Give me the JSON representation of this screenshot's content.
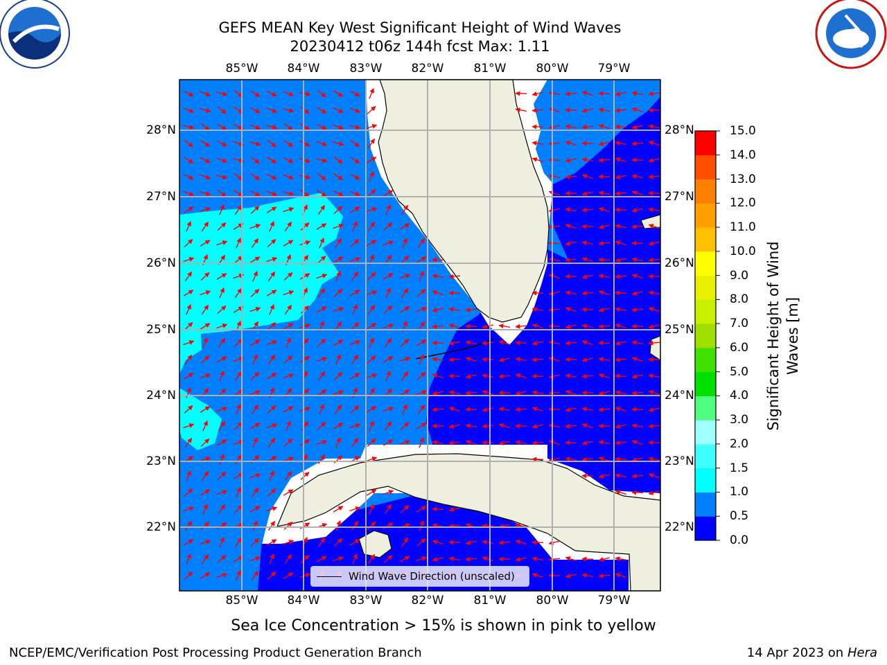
{
  "title": {
    "line1": "GEFS MEAN Key West Significant Height of Wind Waves",
    "line2": "20230412 t06z 144h fcst   Max: 1.11"
  },
  "longitude_labels": [
    "85°W",
    "84°W",
    "83°W",
    "82°W",
    "81°W",
    "80°W",
    "79°W"
  ],
  "latitude_labels": [
    "28°N",
    "27°N",
    "26°N",
    "25°N",
    "24°N",
    "23°N",
    "22°N"
  ],
  "legend": {
    "label": "Wind Wave Direction (unscaled)"
  },
  "colorbar": {
    "label_line1": "Significant Height of Wind",
    "label_line2": "Waves [m]",
    "ticks": [
      "15.0",
      "14.0",
      "13.0",
      "12.0",
      "11.0",
      "10.0",
      "9.0",
      "8.0",
      "7.0",
      "6.0",
      "5.0",
      "4.0",
      "3.0",
      "2.0",
      "1.5",
      "1.0",
      "0.5",
      "0.0"
    ],
    "bands": [
      {
        "from": 0.0,
        "to": 0.5,
        "color": "#0000ff"
      },
      {
        "from": 0.5,
        "to": 1.0,
        "color": "#0080ff"
      },
      {
        "from": 1.0,
        "to": 1.5,
        "color": "#00ffff"
      },
      {
        "from": 1.5,
        "to": 2.0,
        "color": "#40ffff"
      },
      {
        "from": 2.0,
        "to": 3.0,
        "color": "#a0ffff"
      },
      {
        "from": 3.0,
        "to": 4.0,
        "color": "#50ff80"
      },
      {
        "from": 4.0,
        "to": 5.0,
        "color": "#00e000"
      },
      {
        "from": 5.0,
        "to": 6.0,
        "color": "#40e000"
      },
      {
        "from": 6.0,
        "to": 7.0,
        "color": "#a0e000"
      },
      {
        "from": 7.0,
        "to": 8.0,
        "color": "#c8f000"
      },
      {
        "from": 8.0,
        "to": 9.0,
        "color": "#e8f000"
      },
      {
        "from": 9.0,
        "to": 10.0,
        "color": "#ffff00"
      },
      {
        "from": 10.0,
        "to": 11.0,
        "color": "#ffc000"
      },
      {
        "from": 11.0,
        "to": 12.0,
        "color": "#ffa000"
      },
      {
        "from": 12.0,
        "to": 13.0,
        "color": "#ff8000"
      },
      {
        "from": 13.0,
        "to": 14.0,
        "color": "#ff5000"
      },
      {
        "from": 14.0,
        "to": 15.0,
        "color": "#ff0000"
      }
    ]
  },
  "colors": {
    "low": "#0000ff",
    "mid": "#0080ff",
    "high": "#00ffff",
    "land": "#efefdf",
    "arrow": "#ff0000",
    "grid": "#b0b0b0"
  },
  "note": "Sea Ice Concentration > 15% is shown in pink to yellow",
  "footer": {
    "left": "NCEP/EMC/Verification Post Processing Product Generation Branch",
    "right_date": "14 Apr 2023 on ",
    "right_host": "Hera"
  },
  "logos": {
    "left": "NOAA",
    "right": "NATIONAL WEATHER SERVICE"
  }
}
